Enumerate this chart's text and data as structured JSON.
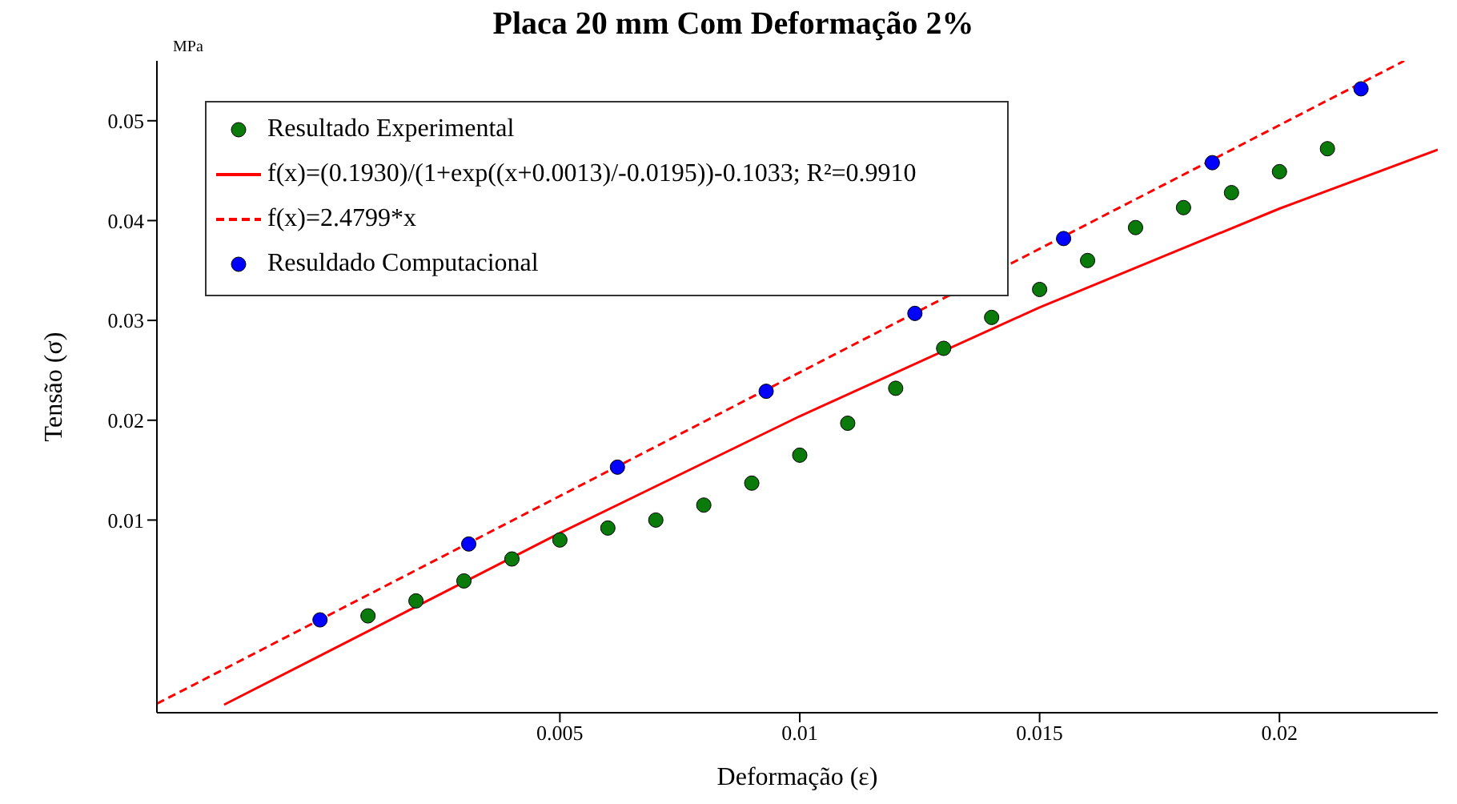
{
  "chart_data": {
    "type": "scatter",
    "title": "Placa 20 mm Com Deformação 2%",
    "xlabel": "Deformação (ε)",
    "ylabel": "Tensão (σ)",
    "annotations": [
      "MPa"
    ],
    "xlim": [
      -0.0034,
      0.0233
    ],
    "ylim": [
      -0.0093,
      0.056
    ],
    "xticks": [
      0.005,
      0.01,
      0.015,
      0.02
    ],
    "yticks": [
      0.01,
      0.02,
      0.03,
      0.04,
      0.05
    ],
    "grid": false,
    "legend": "top left",
    "series": [
      {
        "name": "Resultado Experimental",
        "marker": "circle",
        "color": "#0a7a0a",
        "x": [
          0.001,
          0.002,
          0.003,
          0.004,
          0.005,
          0.006,
          0.007,
          0.008,
          0.009,
          0.01,
          0.011,
          0.012,
          0.013,
          0.014,
          0.015,
          0.016,
          0.017,
          0.018,
          0.019,
          0.02,
          0.021
        ],
        "values": [
          0.0004,
          0.0019,
          0.0039,
          0.0061,
          0.008,
          0.0092,
          0.01,
          0.0115,
          0.0137,
          0.0165,
          0.0197,
          0.0232,
          0.0272,
          0.0303,
          0.0331,
          0.036,
          0.0393,
          0.0413,
          0.0428,
          0.0449,
          0.0472
        ]
      },
      {
        "name": "f(x)=(0.1930)/(1+exp((x+0.0013)/-0.0195))-0.1033; R²=0.9910",
        "type": "line",
        "line_style": "solid",
        "marker": "none",
        "color": "#ff0000",
        "x": [
          -0.002,
          0,
          0.005,
          0.01,
          0.015,
          0.02,
          0.0233
        ],
        "values": [
          -0.0085,
          -0.0036,
          0.0087,
          0.0204,
          0.0313,
          0.0412,
          0.0471
        ]
      },
      {
        "name": "f(x)=2.4799*x",
        "type": "line",
        "line_style": "dashed",
        "marker": "none",
        "color": "#ff0000",
        "x": [
          -0.0034,
          0.0226
        ],
        "values": [
          -0.0084,
          0.056
        ]
      },
      {
        "name": "Resuldado Computacional",
        "marker": "circle",
        "color": "#0000ff",
        "x": [
          0,
          0.0031,
          0.0062,
          0.0093,
          0.0124,
          0.0155,
          0.0186,
          0.0217
        ],
        "values": [
          0,
          0.0076,
          0.0153,
          0.0229,
          0.0307,
          0.0382,
          0.0458,
          0.0532
        ]
      }
    ]
  }
}
